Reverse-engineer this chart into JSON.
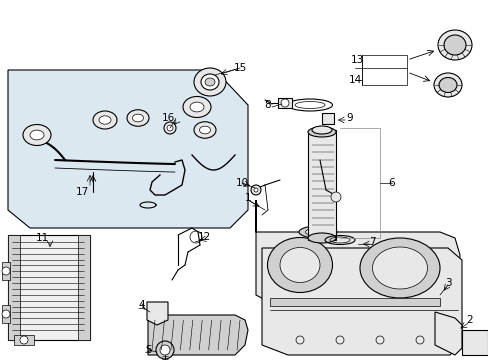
{
  "bg_color": "#ffffff",
  "line_color": "#000000",
  "panel_fill": "#dce8f0",
  "part_fill": "#e8e8e8",
  "part_fill2": "#d0d0d0",
  "white": "#ffffff",
  "gray": "#aaaaaa"
}
